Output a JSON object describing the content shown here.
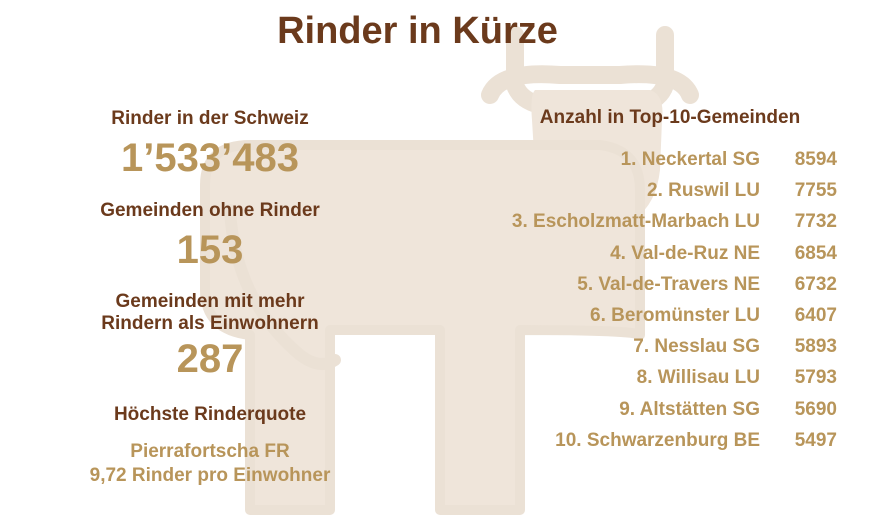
{
  "title": "Rinder in Kürze",
  "left": {
    "cattle_label": "Rinder in der Schweiz",
    "cattle_value": "1’533’483",
    "no_cattle_label": "Gemeinden ohne Rinder",
    "no_cattle_value": "153",
    "more_cattle_label_line1": "Gemeinden mit mehr",
    "more_cattle_label_line2": "Rindern als Einwohnern",
    "more_cattle_value": "287",
    "ratio_label": "Höchste Rinderquote",
    "ratio_place": "Pierrafortscha FR",
    "ratio_value": "9,72 Rinder pro Einwohner"
  },
  "right": {
    "title": "Anzahl in Top-10-Gemeinden",
    "rows": [
      {
        "name": "1. Neckertal SG",
        "value": "8594"
      },
      {
        "name": "2. Ruswil LU",
        "value": "7755"
      },
      {
        "name": "3. Escholzmatt-Marbach LU",
        "value": "7732"
      },
      {
        "name": "4. Val-de-Ruz NE",
        "value": "6854"
      },
      {
        "name": "5. Val-de-Travers NE",
        "value": "6732"
      },
      {
        "name": "6. Beromünster LU",
        "value": "6407"
      },
      {
        "name": "7. Nesslau SG",
        "value": "5893"
      },
      {
        "name": "8. Willisau LU",
        "value": "5793"
      },
      {
        "name": "9. Altstätten SG",
        "value": "5690"
      },
      {
        "name": "10. Schwarzenburg BE",
        "value": "5497"
      }
    ]
  },
  "colors": {
    "dark_brown": "#6b3a1c",
    "gold": "#b8955a",
    "cow_fill": "#efe5da",
    "cow_stroke": "#eadfd2"
  },
  "icons": {
    "background": "cow-silhouette-icon"
  }
}
